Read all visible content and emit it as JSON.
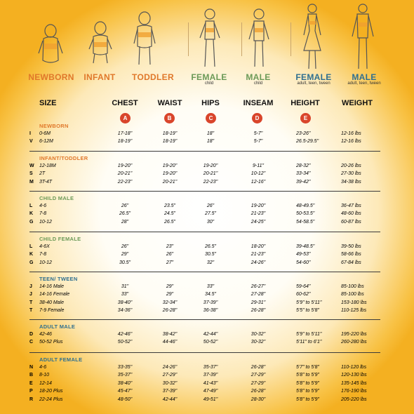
{
  "figures": [
    {
      "label": "NEWBORN",
      "sublabel": "",
      "color": "#e0782a"
    },
    {
      "label": "INFANT",
      "sublabel": "",
      "color": "#e0782a"
    },
    {
      "label": "TODDLER",
      "sublabel": "",
      "color": "#e0782a"
    },
    {
      "label": "FEMALE",
      "sublabel": "child",
      "color": "#6c9a57"
    },
    {
      "label": "MALE",
      "sublabel": "child",
      "color": "#6c9a57"
    },
    {
      "label": "FEMALE",
      "sublabel": "adult, teen, tween",
      "color": "#2f6f8f"
    },
    {
      "label": "MALE",
      "sublabel": "adult, teen, tween",
      "color": "#2f6f8f"
    }
  ],
  "headers": {
    "size": "SIZE",
    "chest": "CHEST",
    "waist": "WAIST",
    "hips": "HIPS",
    "inseam": "INSEAM",
    "height": "HEIGHT",
    "weight": "WEIGHT"
  },
  "badges": {
    "chest": "A",
    "waist": "B",
    "hips": "C",
    "inseam": "D",
    "height": "E"
  },
  "colors": {
    "section_baby": "#e0782a",
    "section_child": "#6c9a57",
    "section_adult": "#2f6f8f",
    "badge": "#d9452b"
  },
  "sections": [
    {
      "title": "NEWBORN",
      "color": "#e0782a",
      "rows": [
        [
          "I",
          "0-6M",
          "17-18\"",
          "18-19\"",
          "18\"",
          "5-7\"",
          "23-26\"",
          "12-16 lbs"
        ],
        [
          "V",
          "6-12M",
          "18-19\"",
          "18-19\"",
          "18\"",
          "5-7\"",
          "26.5-29.5\"",
          "12-16 lbs"
        ]
      ]
    },
    {
      "title": "INFANT/TODDLER",
      "color": "#e0782a",
      "rows": [
        [
          "W",
          "12-18M",
          "19-20\"",
          "19-20\"",
          "19-20\"",
          "9-11\"",
          "28-32\"",
          "20-26 lbs"
        ],
        [
          "S",
          "2T",
          "20-21\"",
          "19-20\"",
          "20-21\"",
          "10-12\"",
          "33-34\"",
          "27-30 lbs"
        ],
        [
          "M",
          "3T-4T",
          "22-23\"",
          "20-21\"",
          "22-23\"",
          "12-16\"",
          "39-42\"",
          "34-38 lbs"
        ]
      ]
    },
    {
      "title": "CHILD MALE",
      "color": "#6c9a57",
      "rows": [
        [
          "L",
          "4-6",
          "26\"",
          "23.5\"",
          "26\"",
          "19-20\"",
          "48-49.5\"",
          "36-47 lbs"
        ],
        [
          "K",
          "7-8",
          "26.5\"",
          "24.5\"",
          "27.5\"",
          "21-23\"",
          "50-53.5\"",
          "48-60 lbs"
        ],
        [
          "G",
          "10-12",
          "28\"",
          "26.5\"",
          "30\"",
          "24-25\"",
          "54-58.5\"",
          "60-87 lbs"
        ]
      ]
    },
    {
      "title": "CHILD FEMALE",
      "color": "#6c9a57",
      "rows": [
        [
          "L",
          "4-6X",
          "26\"",
          "23\"",
          "26.5\"",
          "18-20\"",
          "39-48.5\"",
          "39-50 lbs"
        ],
        [
          "K",
          "7-8",
          "29\"",
          "26\"",
          "30.5\"",
          "21-23\"",
          "49-53\"",
          "58-66 lbs"
        ],
        [
          "G",
          "10-12",
          "30.5\"",
          "27\"",
          "32\"",
          "24-26\"",
          "54-60\"",
          "67-84 lbs"
        ]
      ]
    },
    {
      "title": "TEEN/ TWEEN",
      "color": "#2f6f8f",
      "rows": [
        [
          "J",
          "14-16 Male",
          "31\"",
          "29\"",
          "33\"",
          "26-27\"",
          "59-64\"",
          "85-100 lbs"
        ],
        [
          "J",
          "14-16 Female",
          "33\"",
          "29\"",
          "34.5\"",
          "27-28\"",
          "60-62\"",
          "85-100 lbs"
        ],
        [
          "T",
          "38-40 Male",
          "38-40\"",
          "32-34\"",
          "37-39\"",
          "29-31\"",
          "5'9\" to 5'11\"",
          "153-180 lbs"
        ],
        [
          "T",
          "7-9 Female",
          "34-36\"",
          "26-28\"",
          "36-38\"",
          "26-28\"",
          "5'5\" to 5'8\"",
          "110-125 lbs"
        ]
      ]
    },
    {
      "title": "ADULT MALE",
      "color": "#2f6f8f",
      "rows": [
        [
          "D",
          "42-46",
          "42-46\"",
          "38-42\"",
          "42-44\"",
          "30-32\"",
          "5'9\" to 5'11\"",
          "195-220 lbs"
        ],
        [
          "C",
          "50-52 Plus",
          "50-52\"",
          "44-46\"",
          "50-52\"",
          "30-32\"",
          "5'11\" to 6'1\"",
          "260-280 lbs"
        ]
      ]
    },
    {
      "title": "ADULT FEMALE",
      "color": "#2f6f8f",
      "rows": [
        [
          "N",
          "4-6",
          "33-35\"",
          "24-26\"",
          "35-37\"",
          "26-28\"",
          "5'7\" to 5'8\"",
          "110-120 lbs"
        ],
        [
          "B",
          "8-10",
          "35-37\"",
          "27-29\"",
          "37-39\"",
          "27-29\"",
          "5'8\" to 5'9\"",
          "120-130 lbs"
        ],
        [
          "E",
          "12-14",
          "38-40\"",
          "30-32\"",
          "41-43\"",
          "27-29\"",
          "5'8\" to 5'9\"",
          "135-145 lbs"
        ],
        [
          "P",
          "18-20 Plus",
          "45-47\"",
          "37-39\"",
          "47-49\"",
          "26-28\"",
          "5'8\" to 5'9\"",
          "176-190 lbs"
        ],
        [
          "R",
          "22-24 Plus",
          "48-50\"",
          "42-44\"",
          "49-51\"",
          "28-30\"",
          "5'8\" to 5'9\"",
          "205-220 lbs"
        ]
      ]
    }
  ]
}
